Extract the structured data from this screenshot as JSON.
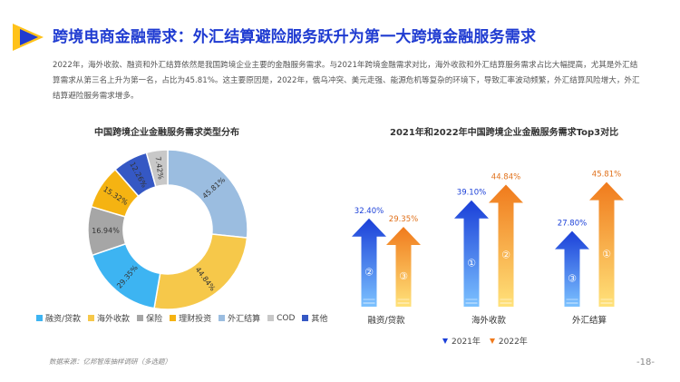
{
  "header": {
    "title": "跨境电商金融需求：外汇结算避险服务跃升为第一大跨境金融服务需求",
    "intro": "2022年，海外收款、融资和外汇结算依然是我国跨境企业主要的金融服务需求。与2021年跨境金融需求对比，海外收款和外汇结算服务需求占比大幅提高，尤其是外汇结算需求从第三名上升为第一名，占比为45.81%。这主要原因是，2022年，俄乌冲突、美元走强、能源危机等复杂的环境下，导致汇率波动频繁，外汇结算风险增大，外汇结算避险服务需求增多。"
  },
  "footer": {
    "source": "数据来源：亿邦智库抽样调研（多选题）",
    "page": "-18-"
  },
  "colors": {
    "title": "#1f3bd1",
    "blue_dark": "#1a3fd8",
    "blue_light": "#5ea6ff",
    "orange_dark": "#f07a1c",
    "orange_light": "#ffd35a"
  },
  "chart_data": [
    {
      "type": "pie",
      "title": "中国跨境企业金融服务需求类型分布",
      "categories": [
        "外汇结算",
        "海外收款",
        "融资/贷款",
        "保险",
        "理财投资",
        "其他",
        "COD"
      ],
      "values": [
        45.81,
        44.84,
        29.35,
        16.94,
        15.32,
        12.26,
        7.42
      ],
      "labels": [
        "45.81%",
        "44.84%",
        "29.35%",
        "16.94%",
        "15.32%",
        "12.26%",
        "7.42%"
      ],
      "colors": [
        "#9bbde0",
        "#f6c84a",
        "#3db4f2",
        "#a6a6a6",
        "#f5b312",
        "#3558c4",
        "#c8c8c8"
      ],
      "legend": [
        {
          "label": "融资/贷款",
          "color": "#3db4f2"
        },
        {
          "label": "海外收款",
          "color": "#f6c84a"
        },
        {
          "label": "保险",
          "color": "#a6a6a6"
        },
        {
          "label": "理财投资",
          "color": "#f5b312"
        },
        {
          "label": "外汇结算",
          "color": "#9bbde0"
        },
        {
          "label": "COD",
          "color": "#c8c8c8"
        },
        {
          "label": "其他",
          "color": "#3558c4"
        }
      ],
      "legend_placement": "bottom"
    },
    {
      "type": "bar",
      "title": "2021年和2022年中国跨境企业金融服务需求Top3对比",
      "categories": [
        "融资/贷款",
        "海外收款",
        "外汇结算"
      ],
      "series": [
        {
          "name": "2021年",
          "values": [
            32.4,
            39.1,
            27.8
          ],
          "labels": [
            "32.40%",
            "39.10%",
            "27.80%"
          ],
          "ranks": [
            "②",
            "①",
            "③"
          ]
        },
        {
          "name": "2022年",
          "values": [
            29.35,
            44.84,
            45.81
          ],
          "labels": [
            "29.35%",
            "44.84%",
            "45.81%"
          ],
          "ranks": [
            "③",
            "②",
            "①"
          ]
        }
      ],
      "legend_placement": "bottom"
    }
  ]
}
